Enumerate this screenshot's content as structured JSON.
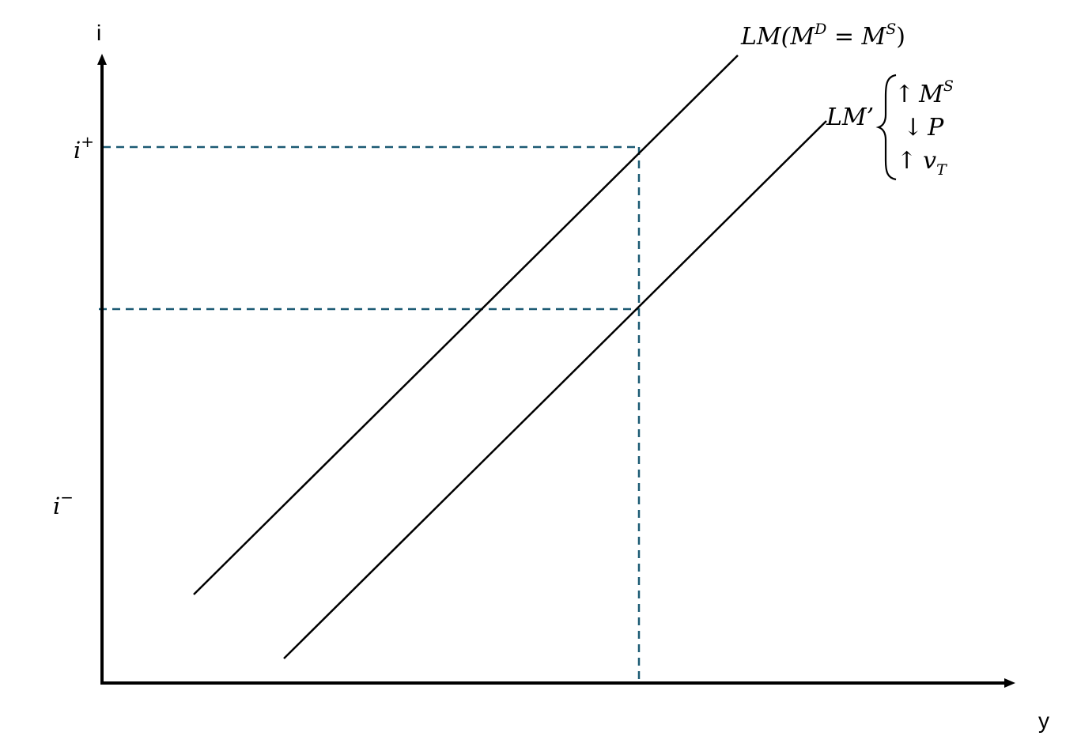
{
  "axes": {
    "y_axis_label": "i",
    "x_axis_label": "y"
  },
  "interest_ticks": {
    "high": {
      "base": "i",
      "sup": "+"
    },
    "low": {
      "base": "i",
      "sup": "−"
    }
  },
  "curves": {
    "lm_original": {
      "prefix": "LM(M",
      "sup_d": "D",
      "equals": " = M",
      "sup_s": "S",
      "suffix": ")"
    },
    "lm_shifted": {
      "label": "LM’"
    }
  },
  "shift_causes": {
    "money_supply": {
      "arrow": "↑",
      "symbol": "M",
      "sup": "S"
    },
    "price_level": {
      "arrow": "↓",
      "symbol": "P"
    },
    "velocity": {
      "arrow": "↑",
      "symbol": "v",
      "sub": "T"
    }
  },
  "colors": {
    "curve": "#000000",
    "axis": "#000000",
    "guide": "#1b5a73"
  }
}
